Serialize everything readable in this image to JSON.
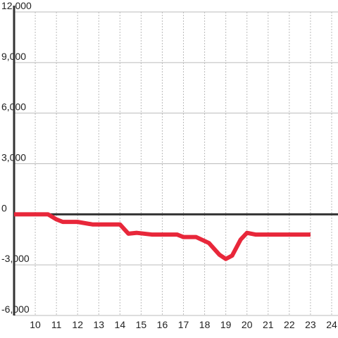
{
  "chart_data": {
    "type": "line",
    "x": [
      9,
      10.6,
      11,
      11.3,
      12,
      12.7,
      14,
      14.4,
      14.8,
      15.5,
      16.7,
      17,
      17.6,
      18.2,
      18.7,
      19,
      19.3,
      19.7,
      20,
      20.4,
      23
    ],
    "series": [
      {
        "color": "#e8273a",
        "values": [
          0,
          0,
          -300,
          -450,
          -450,
          -600,
          -600,
          -1150,
          -1100,
          -1200,
          -1200,
          -1350,
          -1350,
          -1700,
          -2400,
          -2650,
          -2450,
          -1500,
          -1100,
          -1200,
          -1200
        ]
      }
    ],
    "xlim": [
      9,
      24.3
    ],
    "xticks": [
      10,
      11,
      12,
      13,
      14,
      15,
      16,
      17,
      18,
      19,
      20,
      21,
      22,
      23,
      24
    ],
    "ylim": [
      -6000,
      12000
    ],
    "yticks": [
      {
        "value": 12000,
        "label": "12,000"
      },
      {
        "value": 9000,
        "label": "9,000"
      },
      {
        "value": 6000,
        "label": "6,000"
      },
      {
        "value": 3000,
        "label": "3,000"
      },
      0,
      {
        "value": -3000,
        "label": "-3,000"
      },
      {
        "value": -6000,
        "label": "-6,000"
      }
    ],
    "grid": true
  }
}
